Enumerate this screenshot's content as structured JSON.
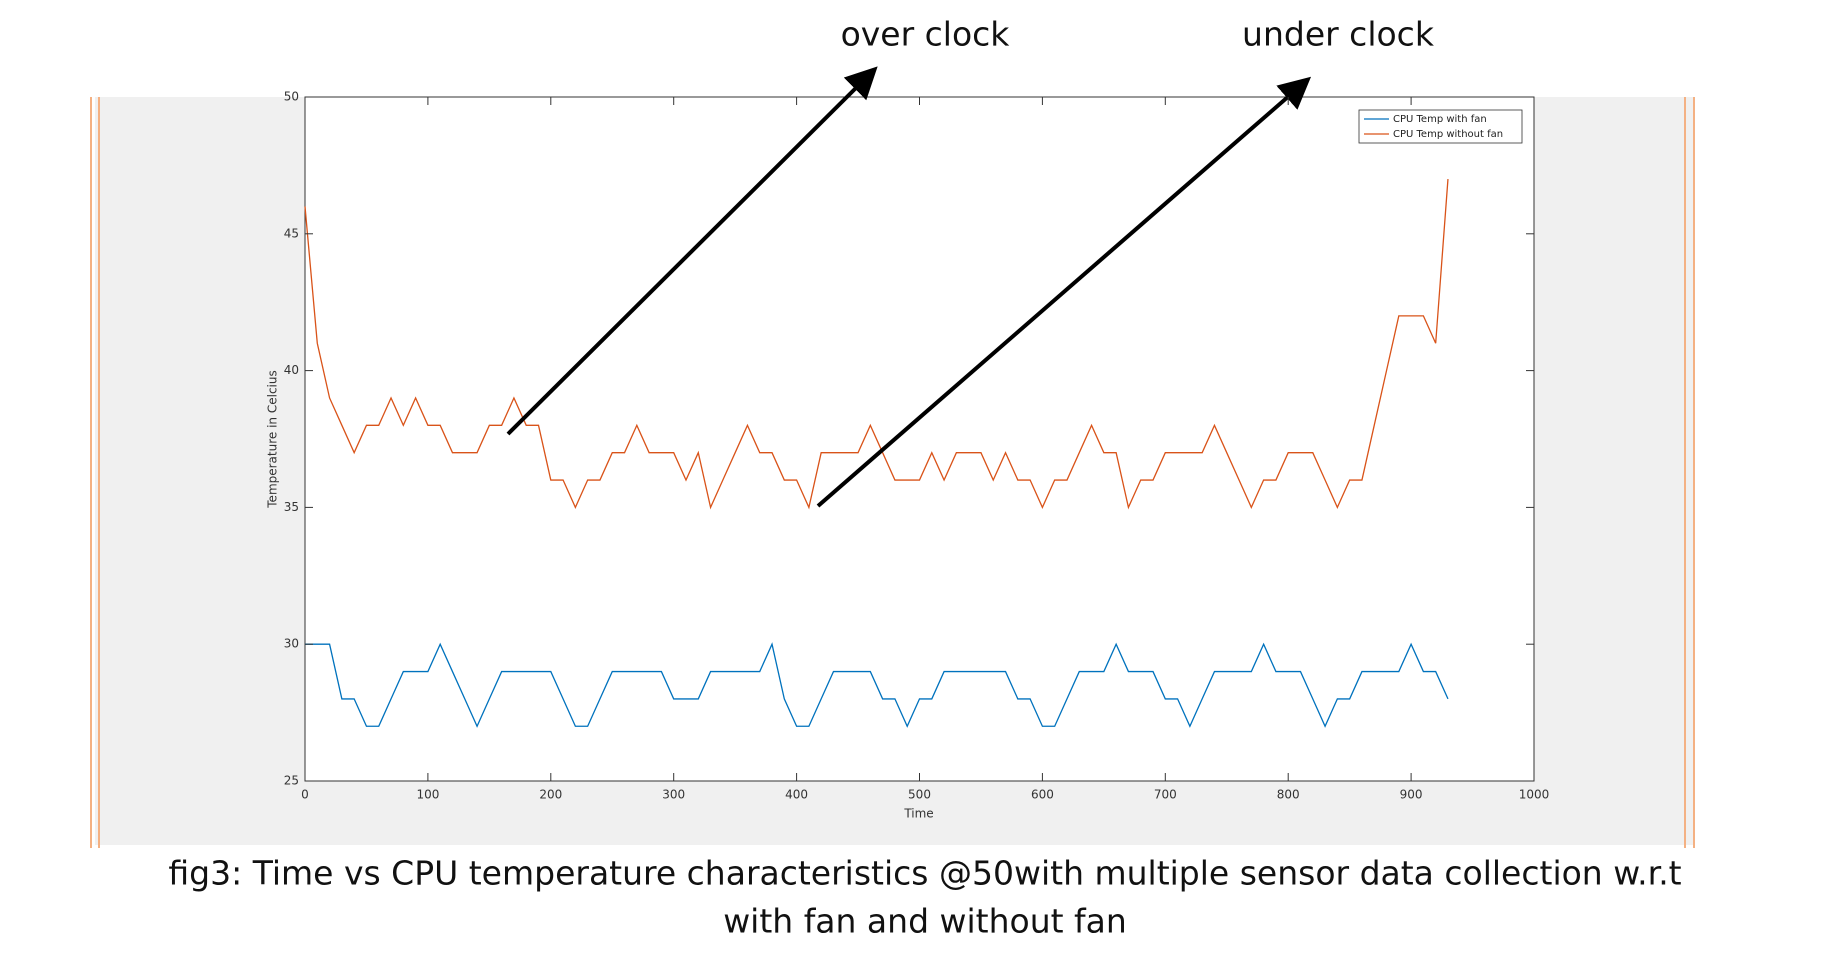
{
  "chart_data": {
    "type": "line",
    "annotations": [
      "over clock",
      "under clock"
    ],
    "caption": [
      "fig3: Time vs CPU temperature characteristics @50with multiple sensor data collection w.r.t",
      "with fan and without fan"
    ],
    "xlabel": "Time",
    "ylabel": "Temperature in Celcius",
    "xlim": [
      0,
      1000
    ],
    "xticks": [
      0,
      100,
      200,
      300,
      400,
      500,
      600,
      700,
      800,
      900,
      1000
    ],
    "ylim": [
      25,
      50
    ],
    "yticks": [
      25,
      30,
      35,
      40,
      45,
      50
    ],
    "legend": "upper right",
    "x": [
      0,
      10,
      20,
      30,
      40,
      50,
      60,
      70,
      80,
      90,
      100,
      110,
      120,
      130,
      140,
      150,
      160,
      170,
      180,
      190,
      200,
      210,
      220,
      230,
      240,
      250,
      260,
      270,
      280,
      290,
      300,
      310,
      320,
      330,
      340,
      350,
      360,
      370,
      380,
      390,
      400,
      410,
      420,
      430,
      440,
      450,
      460,
      470,
      480,
      490,
      500,
      510,
      520,
      530,
      540,
      550,
      560,
      570,
      580,
      590,
      600,
      610,
      620,
      630,
      640,
      650,
      660,
      670,
      680,
      690,
      700,
      710,
      720,
      730,
      740,
      750,
      760,
      770,
      780,
      790,
      800,
      810,
      820,
      830,
      840,
      850,
      860,
      870,
      880,
      890,
      900,
      910,
      920,
      930
    ],
    "series": [
      {
        "name": "CPU Temp with fan",
        "color": "#0072bd",
        "values": [
          30,
          30,
          30,
          28,
          28,
          27,
          27,
          28,
          29,
          29,
          29,
          30,
          29,
          28,
          27,
          28,
          29,
          29,
          29,
          29,
          29,
          28,
          27,
          27,
          28,
          29,
          29,
          29,
          29,
          29,
          28,
          28,
          28,
          29,
          29,
          29,
          29,
          29,
          30,
          28,
          27,
          27,
          28,
          29,
          29,
          29,
          29,
          28,
          28,
          27,
          28,
          28,
          29,
          29,
          29,
          29,
          29,
          29,
          28,
          28,
          27,
          27,
          28,
          29,
          29,
          29,
          30,
          29,
          29,
          29,
          28,
          28,
          27,
          28,
          29,
          29,
          29,
          29,
          30,
          29,
          29,
          29,
          28,
          27,
          28,
          28,
          29,
          29,
          29,
          29,
          30,
          29,
          29,
          28
        ]
      },
      {
        "name": "CPU Temp without fan",
        "color": "#d95319",
        "values": [
          46,
          41,
          39,
          38,
          37,
          38,
          38,
          39,
          38,
          39,
          38,
          38,
          37,
          37,
          37,
          38,
          38,
          39,
          38,
          38,
          36,
          36,
          35,
          36,
          36,
          37,
          37,
          38,
          37,
          37,
          37,
          36,
          37,
          35,
          36,
          37,
          38,
          37,
          37,
          36,
          36,
          35,
          37,
          37,
          37,
          37,
          38,
          37,
          36,
          36,
          36,
          37,
          36,
          37,
          37,
          37,
          36,
          37,
          36,
          36,
          35,
          36,
          36,
          37,
          38,
          37,
          37,
          35,
          36,
          36,
          37,
          37,
          37,
          37,
          38,
          37,
          36,
          35,
          36,
          36,
          37,
          37,
          37,
          36,
          35,
          36,
          36,
          38,
          40,
          42,
          42,
          42,
          41,
          47
        ]
      }
    ]
  }
}
